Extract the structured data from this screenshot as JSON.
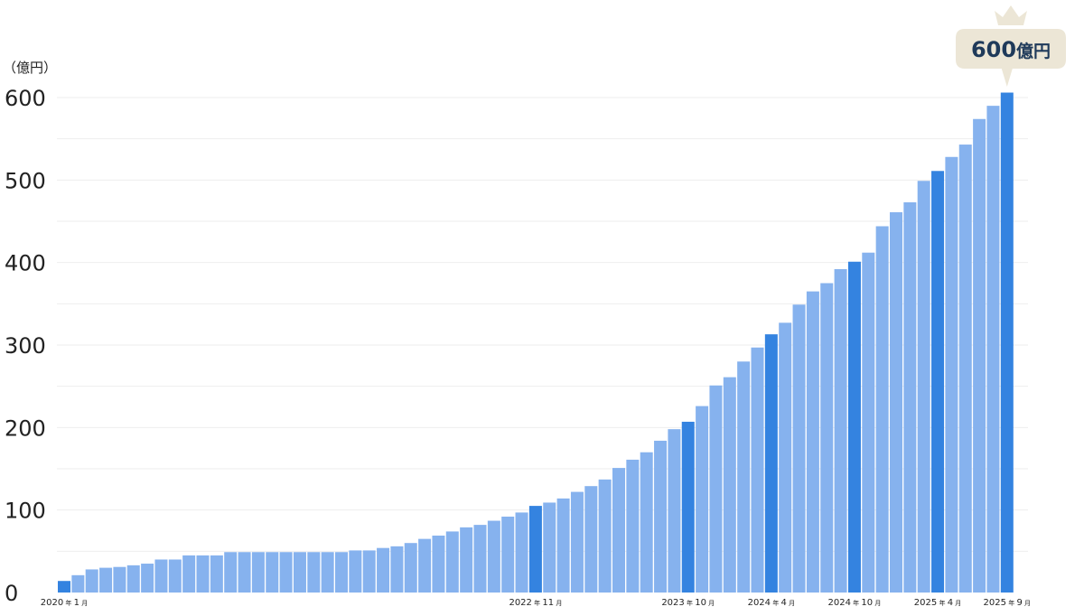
{
  "chart_data": {
    "type": "bar",
    "ylabel": "（億円）",
    "ylim": [
      0,
      600
    ],
    "yticks": [
      "0",
      "100",
      "200",
      "300",
      "400",
      "500",
      "600"
    ],
    "grid": true,
    "categories": [
      "2020-01",
      "2020-02",
      "2020-03",
      "2020-04",
      "2020-05",
      "2020-06",
      "2020-07",
      "2020-08",
      "2020-09",
      "2020-10",
      "2020-11",
      "2020-12",
      "2021-01",
      "2021-02",
      "2021-03",
      "2021-04",
      "2021-05",
      "2021-06",
      "2021-07",
      "2021-08",
      "2021-09",
      "2021-10",
      "2021-11",
      "2021-12",
      "2022-01",
      "2022-02",
      "2022-03",
      "2022-04",
      "2022-05",
      "2022-06",
      "2022-07",
      "2022-08",
      "2022-09",
      "2022-10",
      "2022-11",
      "2022-12",
      "2023-01",
      "2023-02",
      "2023-03",
      "2023-04",
      "2023-05",
      "2023-06",
      "2023-07",
      "2023-08",
      "2023-09",
      "2023-10",
      "2023-11",
      "2023-12",
      "2024-01",
      "2024-02",
      "2024-03",
      "2024-04",
      "2024-05",
      "2024-06",
      "2024-07",
      "2024-08",
      "2024-09",
      "2024-10",
      "2024-11",
      "2024-12",
      "2025-01",
      "2025-02",
      "2025-03",
      "2025-04",
      "2025-05",
      "2025-06",
      "2025-07",
      "2025-08",
      "2025-09"
    ],
    "values": [
      14,
      21,
      28,
      30,
      31,
      33,
      35,
      40,
      40,
      45,
      45,
      45,
      49,
      49,
      49,
      49,
      49,
      49,
      49,
      49,
      49,
      51,
      51,
      54,
      56,
      60,
      65,
      69,
      74,
      79,
      82,
      87,
      92,
      97,
      105,
      109,
      114,
      122,
      129,
      137,
      151,
      161,
      170,
      184,
      198,
      207,
      226,
      251,
      261,
      280,
      297,
      313,
      327,
      349,
      365,
      375,
      392,
      401,
      412,
      444,
      461,
      473,
      499,
      511,
      528,
      543,
      574,
      590,
      606
    ],
    "highlighted": [
      "2020-01",
      "2022-11",
      "2023-10",
      "2024-04",
      "2024-10",
      "2025-04",
      "2025-09"
    ],
    "x_labels": [
      {
        "category": "2020-01",
        "year": "2020",
        "year_unit": "年",
        "month": "1",
        "month_unit": "月"
      },
      {
        "category": "2022-11",
        "year": "2022",
        "year_unit": "年",
        "month": "11",
        "month_unit": "月"
      },
      {
        "category": "2023-10",
        "year": "2023",
        "year_unit": "年",
        "month": "10",
        "month_unit": "月"
      },
      {
        "category": "2024-04",
        "year": "2024",
        "year_unit": "年",
        "month": "4",
        "month_unit": "月"
      },
      {
        "category": "2024-10",
        "year": "2024",
        "year_unit": "年",
        "month": "10",
        "month_unit": "月"
      },
      {
        "category": "2025-04",
        "year": "2025",
        "year_unit": "年",
        "month": "4",
        "month_unit": "月"
      },
      {
        "category": "2025-09",
        "year": "2025",
        "year_unit": "年",
        "month": "9",
        "month_unit": "月"
      }
    ],
    "annotation": {
      "category": "2025-09",
      "number": "600",
      "unit": "億円",
      "icon": "crown-icon"
    },
    "colors": {
      "bar": "#86b2ee",
      "bar_highlight": "#3483e0",
      "grid": "#eeeeee",
      "callout_bg": "#ece6d6",
      "callout_text": "#1f3a5a",
      "crown": "#ece6d6"
    }
  }
}
